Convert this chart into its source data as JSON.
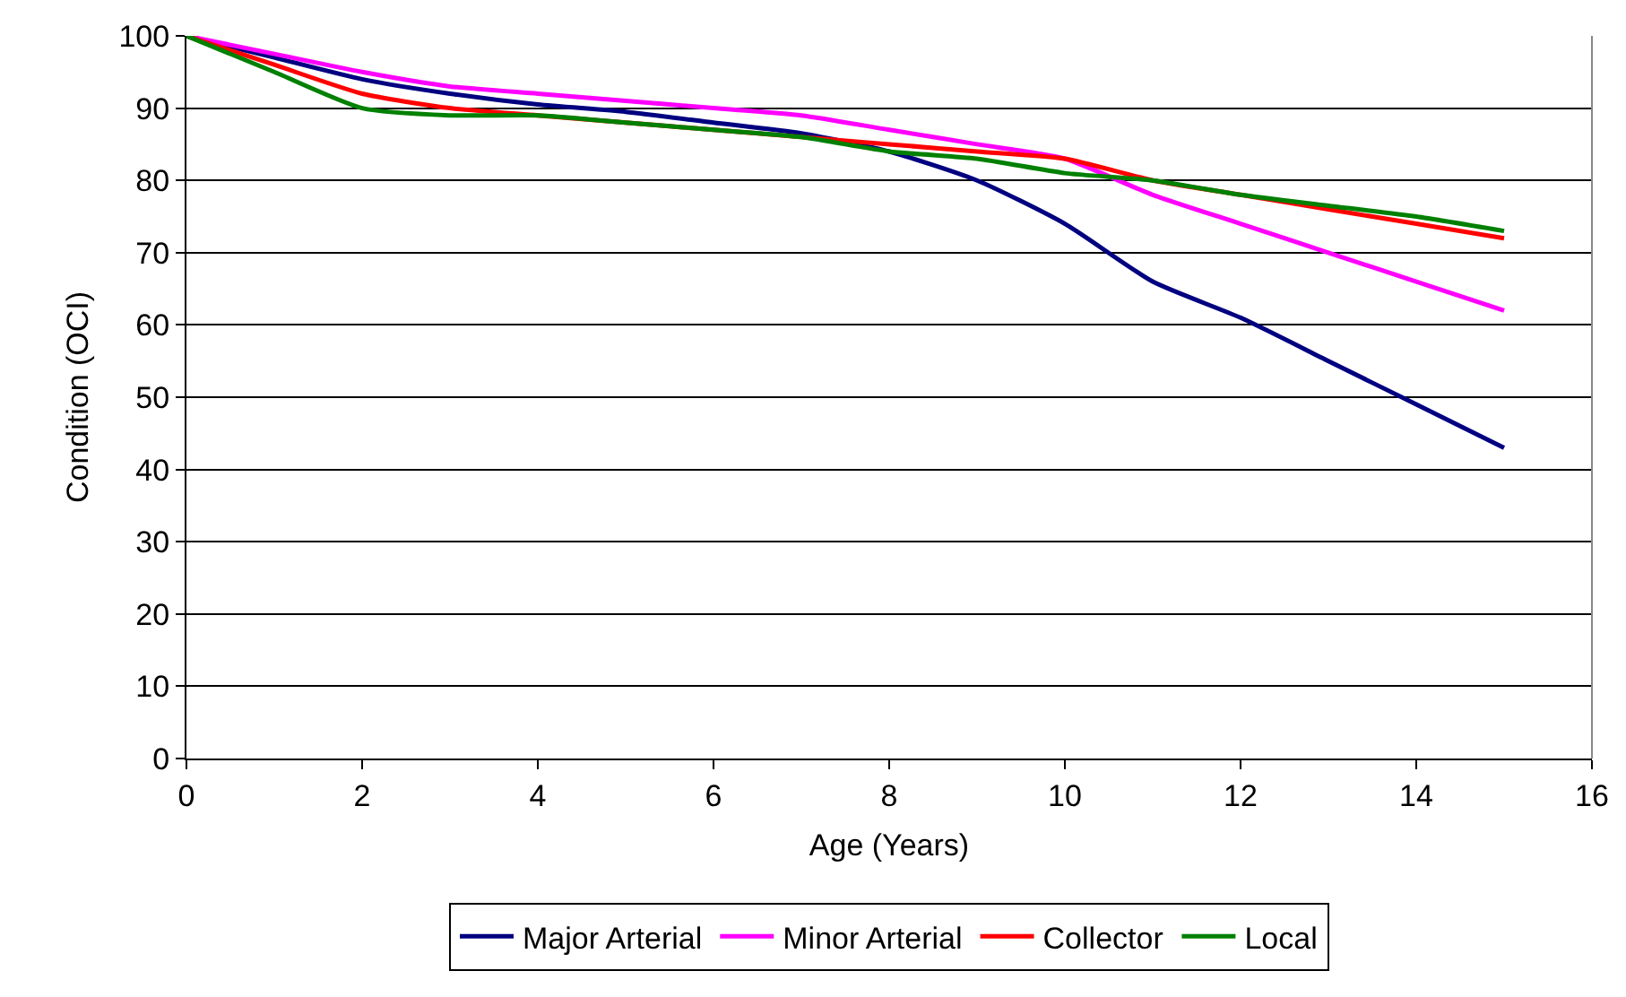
{
  "chart_data": {
    "type": "line",
    "xlabel": "Age (Years)",
    "ylabel": "Condition (OCI)",
    "x": [
      0,
      1,
      2,
      3,
      4,
      5,
      6,
      7,
      8,
      9,
      10,
      11,
      12,
      13,
      14,
      15
    ],
    "series": [
      {
        "name": "Major Arterial",
        "color": "#000080",
        "values": [
          100,
          97,
          94,
          92,
          90.5,
          89.5,
          88,
          86.5,
          84,
          80,
          74,
          66,
          61,
          55,
          49,
          43
        ]
      },
      {
        "name": "Minor Arterial",
        "color": "#ff00ff",
        "values": [
          100,
          97.5,
          95,
          93,
          92,
          91,
          90,
          89,
          87,
          85,
          83,
          78,
          74,
          70,
          66,
          62
        ]
      },
      {
        "name": "Collector",
        "color": "#ff0000",
        "values": [
          100,
          96,
          92,
          90,
          89,
          88,
          87,
          86,
          85,
          84,
          83,
          80,
          78,
          76,
          74,
          72
        ]
      },
      {
        "name": "Local",
        "color": "#008000",
        "values": [
          100,
          95,
          90,
          89,
          89,
          88,
          87,
          86,
          84,
          83,
          81,
          80,
          78,
          76.5,
          75,
          73
        ]
      }
    ],
    "xlim": [
      0,
      16
    ],
    "xticks": [
      0,
      2,
      4,
      6,
      8,
      10,
      12,
      14,
      16
    ],
    "ylim": [
      0,
      100
    ],
    "yticks": [
      0,
      10,
      20,
      30,
      40,
      50,
      60,
      70,
      80,
      90,
      100
    ],
    "grid": "y",
    "legend": "bottom",
    "marker": "none",
    "line_style": "solid"
  }
}
